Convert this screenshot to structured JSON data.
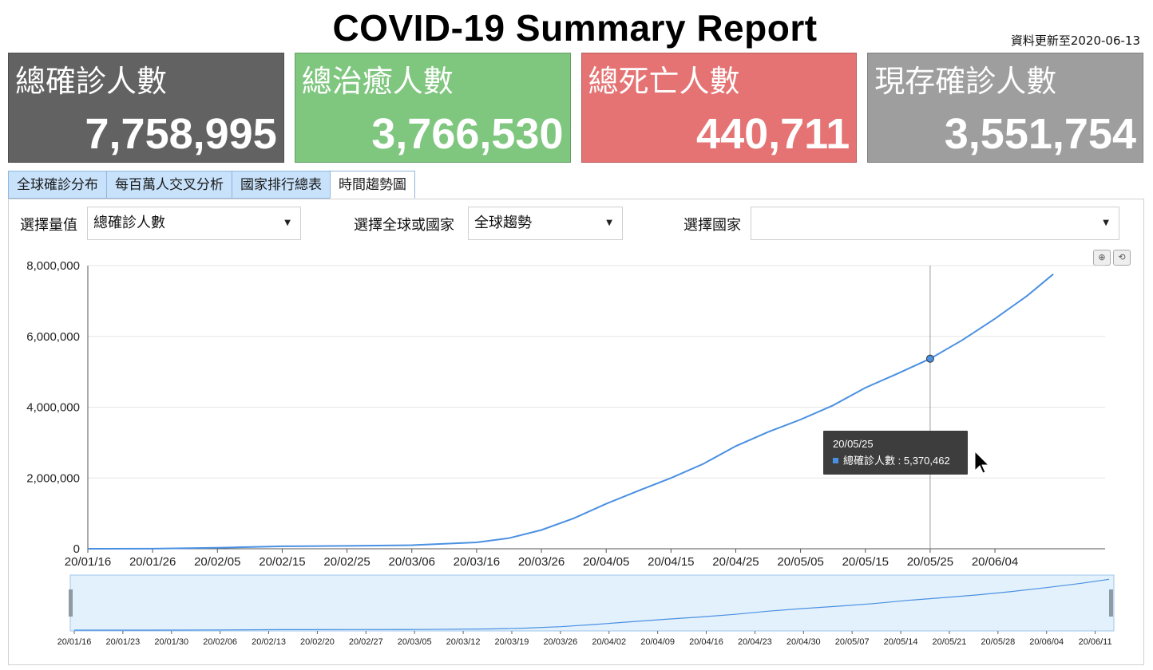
{
  "header": {
    "title": "COVID-19 Summary Report",
    "updated": "資料更新至2020-06-13"
  },
  "cards": [
    {
      "label": "總確診人數",
      "value": "7,758,995",
      "color": "#626262"
    },
    {
      "label": "總治癒人數",
      "value": "3,766,530",
      "color": "#7fc67f"
    },
    {
      "label": "總死亡人數",
      "value": "440,711",
      "color": "#e57373"
    },
    {
      "label": "現存確診人數",
      "value": "3,551,754",
      "color": "#9e9e9e"
    }
  ],
  "tabs": [
    {
      "label": "全球確診分布",
      "active": false
    },
    {
      "label": "每百萬人交叉分析",
      "active": false
    },
    {
      "label": "國家排行總表",
      "active": false
    },
    {
      "label": "時間趨勢圖",
      "active": true
    }
  ],
  "controls": {
    "measure": {
      "label": "選擇量值",
      "value": "總確診人數"
    },
    "scope": {
      "label": "選擇全球或國家",
      "value": "全球趨勢"
    },
    "country": {
      "label": "選擇國家",
      "value": ""
    }
  },
  "zoom_icons": [
    "zoom-in-icon",
    "zoom-reset-icon"
  ],
  "chart_data": {
    "type": "line",
    "title": "",
    "xlabel": "",
    "ylabel": "",
    "ylim": [
      0,
      8000000
    ],
    "yticks": [
      "8,000,000",
      "6,000,000",
      "4,000,000",
      "2,000,000",
      "0"
    ],
    "yticks_values": [
      8000000,
      6000000,
      4000000,
      2000000,
      0
    ],
    "xticks": [
      "20/01/16",
      "20/01/26",
      "20/02/05",
      "20/02/15",
      "20/02/25",
      "20/03/06",
      "20/03/16",
      "20/03/26",
      "20/04/05",
      "20/04/15",
      "20/04/25",
      "20/05/05",
      "20/05/15",
      "20/05/25",
      "20/06/04"
    ],
    "grid": true,
    "series_color": "#4a90e2",
    "series": [
      {
        "name": "總確診人數",
        "x": [
          "20/01/16",
          "20/01/26",
          "20/02/05",
          "20/02/15",
          "20/02/25",
          "20/03/06",
          "20/03/16",
          "20/03/21",
          "20/03/26",
          "20/03/31",
          "20/04/05",
          "20/04/10",
          "20/04/15",
          "20/04/20",
          "20/04/25",
          "20/04/30",
          "20/05/05",
          "20/05/10",
          "20/05/15",
          "20/05/20",
          "20/05/25",
          "20/05/30",
          "20/06/04",
          "20/06/09",
          "20/06/13"
        ],
        "values": [
          300,
          2800,
          28000,
          69000,
          81000,
          101000,
          181000,
          300000,
          530000,
          860000,
          1270000,
          1640000,
          2000000,
          2400000,
          2900000,
          3300000,
          3650000,
          4050000,
          4550000,
          4950000,
          5370462,
          5900000,
          6500000,
          7150000,
          7758995
        ]
      }
    ],
    "tooltip": {
      "date": "20/05/25",
      "label": "總確診人數",
      "value": "5,370,462"
    },
    "navigator": {
      "ticks": [
        "20/01/16",
        "20/01/23",
        "20/01/30",
        "20/02/06",
        "20/02/13",
        "20/02/20",
        "20/02/27",
        "20/03/05",
        "20/03/12",
        "20/03/19",
        "20/03/26",
        "20/04/02",
        "20/04/09",
        "20/04/16",
        "20/04/23",
        "20/04/30",
        "20/05/07",
        "20/05/14",
        "20/05/21",
        "20/05/28",
        "20/06/04",
        "20/06/11"
      ]
    }
  }
}
